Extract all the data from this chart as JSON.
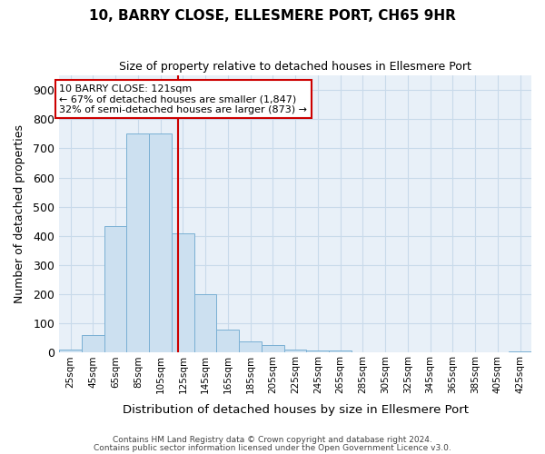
{
  "title": "10, BARRY CLOSE, ELLESMERE PORT, CH65 9HR",
  "subtitle": "Size of property relative to detached houses in Ellesmere Port",
  "xlabel": "Distribution of detached houses by size in Ellesmere Port",
  "ylabel": "Number of detached properties",
  "bin_labels": [
    "25sqm",
    "45sqm",
    "65sqm",
    "85sqm",
    "105sqm",
    "125sqm",
    "145sqm",
    "165sqm",
    "185sqm",
    "205sqm",
    "225sqm",
    "245sqm",
    "265sqm",
    "285sqm",
    "305sqm",
    "325sqm",
    "345sqm",
    "365sqm",
    "385sqm",
    "405sqm",
    "425sqm"
  ],
  "bin_edges": [
    15,
    35,
    55,
    75,
    95,
    115,
    135,
    155,
    175,
    195,
    215,
    235,
    255,
    275,
    295,
    315,
    335,
    355,
    375,
    395,
    415,
    435
  ],
  "bar_values": [
    10,
    60,
    435,
    750,
    750,
    410,
    200,
    80,
    40,
    25,
    10,
    8,
    8,
    0,
    0,
    0,
    0,
    0,
    0,
    0,
    5
  ],
  "bar_facecolor": "#cce0f0",
  "bar_edgecolor": "#7ab0d4",
  "property_size": 121,
  "vline_color": "#cc0000",
  "annotation_title": "10 BARRY CLOSE: 121sqm",
  "annotation_line1": "← 67% of detached houses are smaller (1,847)",
  "annotation_line2": "32% of semi-detached houses are larger (873) →",
  "annotation_box_edgecolor": "#cc0000",
  "ylim": [
    0,
    950
  ],
  "yticks": [
    0,
    100,
    200,
    300,
    400,
    500,
    600,
    700,
    800,
    900
  ],
  "grid_color": "#c8daea",
  "bg_color": "#e8f0f8",
  "footer1": "Contains HM Land Registry data © Crown copyright and database right 2024.",
  "footer2": "Contains public sector information licensed under the Open Government Licence v3.0."
}
